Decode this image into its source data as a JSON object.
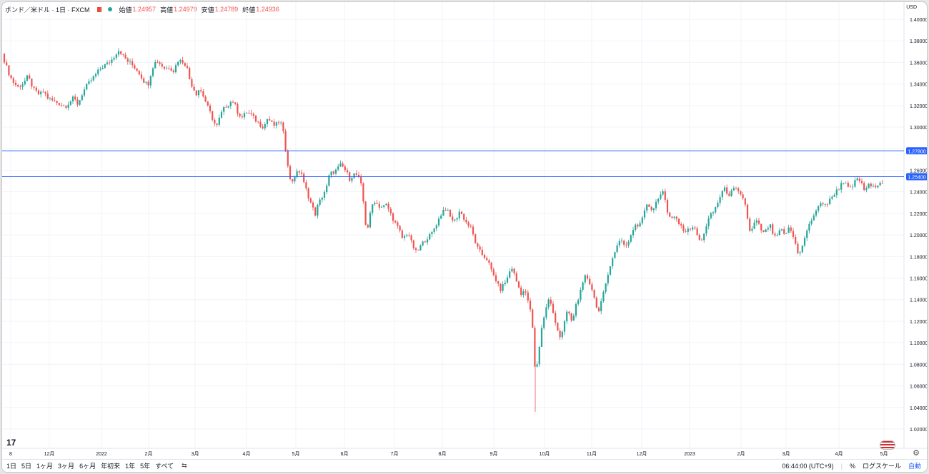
{
  "legend": {
    "symbol": "ポンド／米ドル · 1日 · FXCM",
    "open_label": "始値",
    "open": "1.24957",
    "high_label": "高値",
    "high": "1.24979",
    "low_label": "安値",
    "low": "1.24789",
    "close_label": "終値",
    "close": "1.24936"
  },
  "currency_label": "USD",
  "bottom_bar": {
    "ranges": [
      "1日",
      "5日",
      "1ヶ月",
      "3ヶ月",
      "6ヶ月",
      "年初来",
      "1年",
      "5年",
      "すべて"
    ],
    "time": "06:44:00 (UTC+9)",
    "percent": "%",
    "log_scale": "ログスケール",
    "auto": "自動"
  },
  "colors": {
    "up": "#26a69a",
    "down": "#ef5350",
    "hline": "#2962ff"
  },
  "chart_data": {
    "type": "candlestick",
    "title": "ポンド／米ドル · 1日 · FXCM",
    "ylim": [
      1.01,
      1.405
    ],
    "y_ticks": [
      "1.40000",
      "1.38000",
      "1.36000",
      "1.34000",
      "1.32000",
      "1.30000",
      "1.28000",
      "1.26000",
      "1.24000",
      "1.22000",
      "1.20000",
      "1.18000",
      "1.16000",
      "1.14000",
      "1.12000",
      "1.10000",
      "1.08000",
      "1.06000",
      "1.04000",
      "1.02000"
    ],
    "x_ticks": [
      "8",
      "12月",
      "2022",
      "2月",
      "3月",
      "4月",
      "5月",
      "6月",
      "7月",
      "8月",
      "9月",
      "10月",
      "11月",
      "12月",
      "2023",
      "2月",
      "3月",
      "4月",
      "5月"
    ],
    "horizontal_lines": [
      {
        "value": 1.278,
        "label": "1.27800"
      },
      {
        "value": 1.254,
        "label": "1.25400"
      }
    ],
    "grid": true,
    "price_path": [
      [
        0,
        1.368
      ],
      [
        8,
        1.352
      ],
      [
        14,
        1.343
      ],
      [
        22,
        1.337
      ],
      [
        30,
        1.341
      ],
      [
        36,
        1.347
      ],
      [
        44,
        1.335
      ],
      [
        52,
        1.33
      ],
      [
        58,
        1.333
      ],
      [
        64,
        1.327
      ],
      [
        72,
        1.324
      ],
      [
        80,
        1.322
      ],
      [
        88,
        1.319
      ],
      [
        94,
        1.323
      ],
      [
        100,
        1.327
      ],
      [
        106,
        1.321
      ],
      [
        112,
        1.331
      ],
      [
        118,
        1.338
      ],
      [
        124,
        1.343
      ],
      [
        130,
        1.348
      ],
      [
        136,
        1.353
      ],
      [
        142,
        1.357
      ],
      [
        148,
        1.359
      ],
      [
        154,
        1.363
      ],
      [
        160,
        1.369
      ],
      [
        164,
        1.372
      ],
      [
        168,
        1.367
      ],
      [
        174,
        1.362
      ],
      [
        180,
        1.359
      ],
      [
        186,
        1.355
      ],
      [
        192,
        1.35
      ],
      [
        198,
        1.343
      ],
      [
        204,
        1.339
      ],
      [
        210,
        1.355
      ],
      [
        216,
        1.362
      ],
      [
        222,
        1.358
      ],
      [
        228,
        1.354
      ],
      [
        234,
        1.356
      ],
      [
        240,
        1.352
      ],
      [
        246,
        1.362
      ],
      [
        252,
        1.361
      ],
      [
        258,
        1.357
      ],
      [
        262,
        1.345
      ],
      [
        266,
        1.338
      ],
      [
        272,
        1.331
      ],
      [
        276,
        1.336
      ],
      [
        280,
        1.331
      ],
      [
        284,
        1.325
      ],
      [
        288,
        1.318
      ],
      [
        292,
        1.312
      ],
      [
        296,
        1.305
      ],
      [
        300,
        1.3
      ],
      [
        306,
        1.312
      ],
      [
        312,
        1.319
      ],
      [
        318,
        1.322
      ],
      [
        322,
        1.325
      ],
      [
        326,
        1.32
      ],
      [
        330,
        1.313
      ],
      [
        336,
        1.309
      ],
      [
        342,
        1.314
      ],
      [
        348,
        1.312
      ],
      [
        354,
        1.307
      ],
      [
        360,
        1.303
      ],
      [
        366,
        1.3
      ],
      [
        372,
        1.309
      ],
      [
        376,
        1.304
      ],
      [
        382,
        1.301
      ],
      [
        388,
        1.306
      ],
      [
        392,
        1.301
      ],
      [
        396,
        1.282
      ],
      [
        400,
        1.265
      ],
      [
        404,
        1.246
      ],
      [
        408,
        1.254
      ],
      [
        412,
        1.257
      ],
      [
        418,
        1.26
      ],
      [
        422,
        1.248
      ],
      [
        426,
        1.241
      ],
      [
        430,
        1.233
      ],
      [
        434,
        1.226
      ],
      [
        438,
        1.219
      ],
      [
        442,
        1.228
      ],
      [
        448,
        1.236
      ],
      [
        454,
        1.244
      ],
      [
        458,
        1.256
      ],
      [
        462,
        1.258
      ],
      [
        466,
        1.259
      ],
      [
        470,
        1.262
      ],
      [
        474,
        1.265
      ],
      [
        478,
        1.262
      ],
      [
        482,
        1.258
      ],
      [
        486,
        1.252
      ],
      [
        490,
        1.255
      ],
      [
        494,
        1.257
      ],
      [
        498,
        1.254
      ],
      [
        502,
        1.247
      ],
      [
        506,
        1.228
      ],
      [
        510,
        1.201
      ],
      [
        514,
        1.216
      ],
      [
        518,
        1.228
      ],
      [
        522,
        1.232
      ],
      [
        526,
        1.227
      ],
      [
        532,
        1.226
      ],
      [
        538,
        1.228
      ],
      [
        544,
        1.219
      ],
      [
        550,
        1.211
      ],
      [
        556,
        1.204
      ],
      [
        560,
        1.197
      ],
      [
        564,
        1.199
      ],
      [
        568,
        1.203
      ],
      [
        572,
        1.194
      ],
      [
        576,
        1.188
      ],
      [
        580,
        1.183
      ],
      [
        584,
        1.188
      ],
      [
        588,
        1.192
      ],
      [
        594,
        1.197
      ],
      [
        600,
        1.2
      ],
      [
        606,
        1.208
      ],
      [
        612,
        1.216
      ],
      [
        616,
        1.222
      ],
      [
        620,
        1.225
      ],
      [
        624,
        1.221
      ],
      [
        628,
        1.215
      ],
      [
        634,
        1.213
      ],
      [
        640,
        1.222
      ],
      [
        644,
        1.218
      ],
      [
        650,
        1.211
      ],
      [
        656,
        1.206
      ],
      [
        660,
        1.198
      ],
      [
        664,
        1.189
      ],
      [
        668,
        1.185
      ],
      [
        674,
        1.18
      ],
      [
        678,
        1.178
      ],
      [
        682,
        1.172
      ],
      [
        686,
        1.164
      ],
      [
        690,
        1.16
      ],
      [
        694,
        1.153
      ],
      [
        698,
        1.149
      ],
      [
        702,
        1.155
      ],
      [
        706,
        1.158
      ],
      [
        710,
        1.166
      ],
      [
        714,
        1.17
      ],
      [
        718,
        1.16
      ],
      [
        722,
        1.153
      ],
      [
        726,
        1.146
      ],
      [
        730,
        1.148
      ],
      [
        734,
        1.144
      ],
      [
        738,
        1.134
      ],
      [
        742,
        1.116
      ],
      [
        746,
        1.07
      ],
      [
        750,
        1.086
      ],
      [
        754,
        1.11
      ],
      [
        758,
        1.124
      ],
      [
        762,
        1.135
      ],
      [
        766,
        1.142
      ],
      [
        770,
        1.13
      ],
      [
        774,
        1.118
      ],
      [
        778,
        1.11
      ],
      [
        782,
        1.105
      ],
      [
        786,
        1.118
      ],
      [
        790,
        1.128
      ],
      [
        794,
        1.125
      ],
      [
        798,
        1.118
      ],
      [
        802,
        1.133
      ],
      [
        806,
        1.14
      ],
      [
        810,
        1.15
      ],
      [
        814,
        1.162
      ],
      [
        818,
        1.159
      ],
      [
        822,
        1.153
      ],
      [
        826,
        1.149
      ],
      [
        830,
        1.14
      ],
      [
        834,
        1.125
      ],
      [
        838,
        1.14
      ],
      [
        842,
        1.148
      ],
      [
        846,
        1.156
      ],
      [
        850,
        1.168
      ],
      [
        854,
        1.18
      ],
      [
        858,
        1.186
      ],
      [
        862,
        1.192
      ],
      [
        866,
        1.196
      ],
      [
        870,
        1.192
      ],
      [
        874,
        1.19
      ],
      [
        878,
        1.197
      ],
      [
        882,
        1.203
      ],
      [
        886,
        1.21
      ],
      [
        890,
        1.206
      ],
      [
        894,
        1.214
      ],
      [
        898,
        1.221
      ],
      [
        902,
        1.23
      ],
      [
        906,
        1.226
      ],
      [
        910,
        1.223
      ],
      [
        914,
        1.228
      ],
      [
        918,
        1.233
      ],
      [
        922,
        1.239
      ],
      [
        926,
        1.243
      ],
      [
        930,
        1.221
      ],
      [
        934,
        1.217
      ],
      [
        938,
        1.214
      ],
      [
        942,
        1.217
      ],
      [
        946,
        1.212
      ],
      [
        950,
        1.207
      ],
      [
        954,
        1.205
      ],
      [
        958,
        1.203
      ],
      [
        962,
        1.206
      ],
      [
        966,
        1.208
      ],
      [
        970,
        1.204
      ],
      [
        974,
        1.198
      ],
      [
        978,
        1.192
      ],
      [
        982,
        1.202
      ],
      [
        986,
        1.21
      ],
      [
        990,
        1.217
      ],
      [
        994,
        1.22
      ],
      [
        998,
        1.225
      ],
      [
        1002,
        1.231
      ],
      [
        1006,
        1.238
      ],
      [
        1010,
        1.243
      ],
      [
        1014,
        1.24
      ],
      [
        1018,
        1.237
      ],
      [
        1022,
        1.241
      ],
      [
        1026,
        1.243
      ],
      [
        1030,
        1.239
      ],
      [
        1034,
        1.236
      ],
      [
        1038,
        1.234
      ],
      [
        1042,
        1.22
      ],
      [
        1046,
        1.203
      ],
      [
        1050,
        1.205
      ],
      [
        1054,
        1.214
      ],
      [
        1058,
        1.21
      ],
      [
        1062,
        1.205
      ],
      [
        1066,
        1.201
      ],
      [
        1070,
        1.205
      ],
      [
        1074,
        1.21
      ],
      [
        1078,
        1.202
      ],
      [
        1082,
        1.197
      ],
      [
        1086,
        1.201
      ],
      [
        1090,
        1.205
      ],
      [
        1094,
        1.2
      ],
      [
        1098,
        1.203
      ],
      [
        1102,
        1.207
      ],
      [
        1106,
        1.2
      ],
      [
        1110,
        1.192
      ],
      [
        1114,
        1.183
      ],
      [
        1118,
        1.186
      ],
      [
        1122,
        1.194
      ],
      [
        1126,
        1.204
      ],
      [
        1130,
        1.21
      ],
      [
        1134,
        1.216
      ],
      [
        1138,
        1.222
      ],
      [
        1142,
        1.225
      ],
      [
        1146,
        1.229
      ],
      [
        1150,
        1.23
      ],
      [
        1154,
        1.228
      ],
      [
        1158,
        1.232
      ],
      [
        1162,
        1.236
      ],
      [
        1166,
        1.24
      ],
      [
        1170,
        1.242
      ],
      [
        1174,
        1.248
      ],
      [
        1178,
        1.25
      ],
      [
        1182,
        1.245
      ],
      [
        1186,
        1.242
      ],
      [
        1190,
        1.245
      ],
      [
        1194,
        1.25
      ],
      [
        1198,
        1.253
      ],
      [
        1202,
        1.248
      ],
      [
        1206,
        1.242
      ],
      [
        1210,
        1.244
      ],
      [
        1214,
        1.247
      ],
      [
        1218,
        1.243
      ],
      [
        1222,
        1.246
      ],
      [
        1226,
        1.248
      ],
      [
        1230,
        1.25
      ],
      [
        1233,
        1.2494
      ]
    ]
  }
}
